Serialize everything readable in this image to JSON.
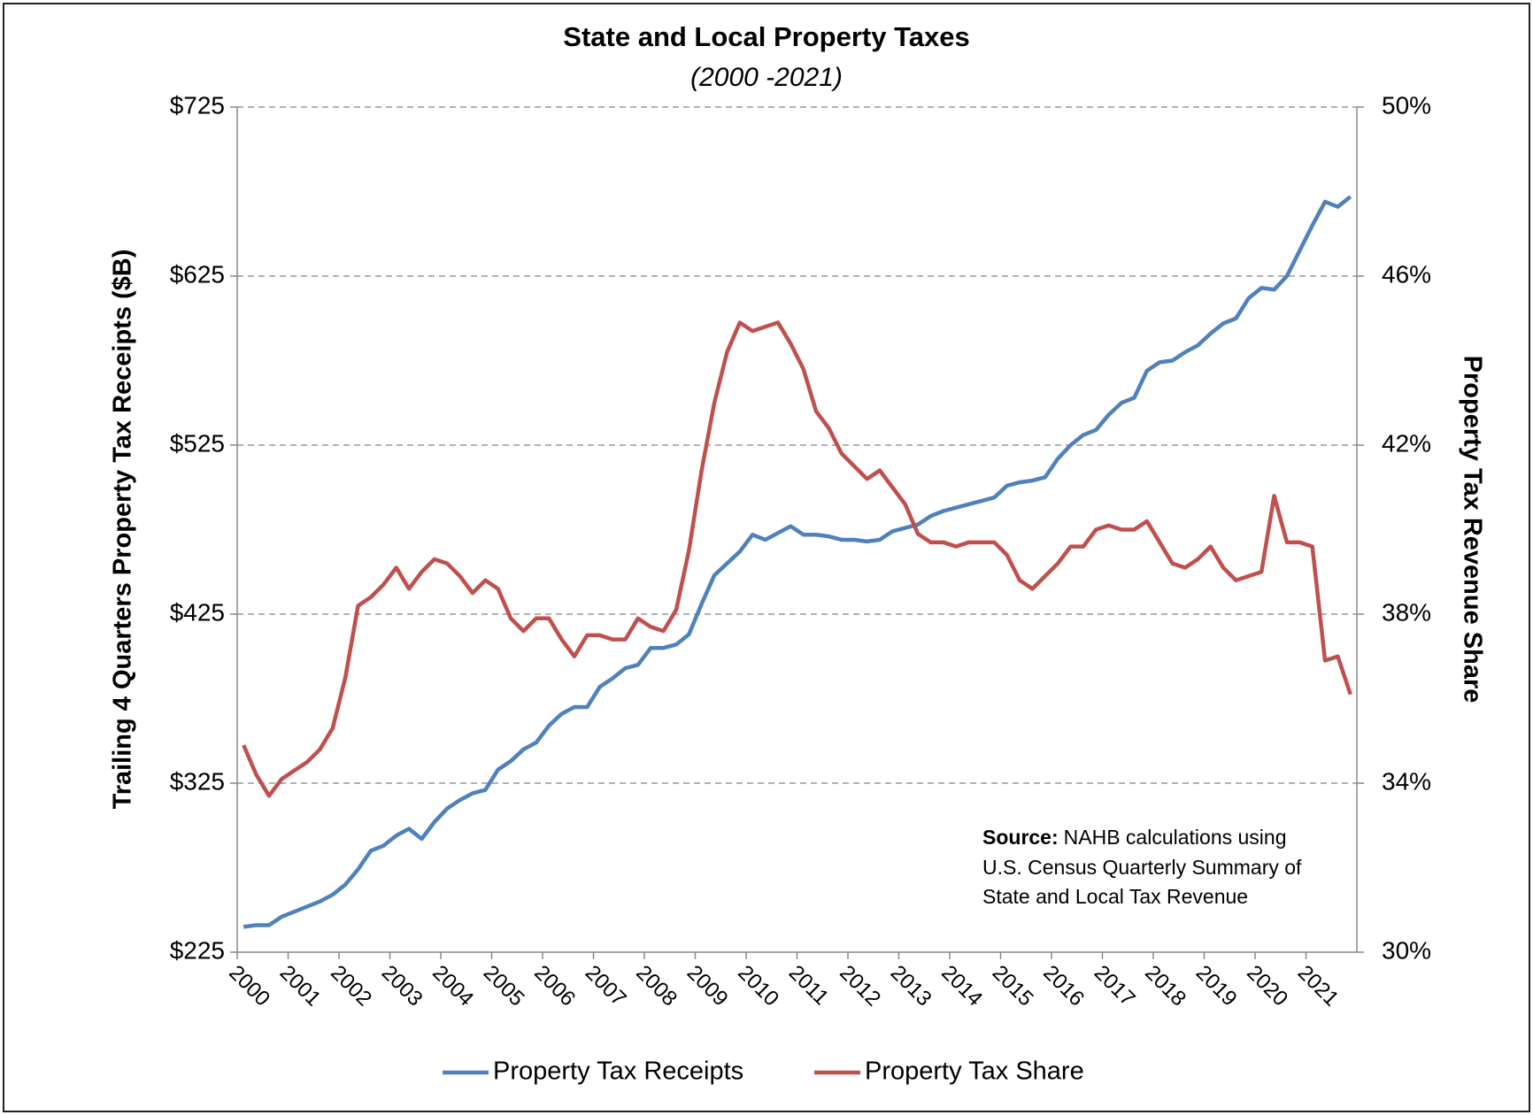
{
  "chart_data": {
    "type": "line",
    "title": "State and Local Property Taxes",
    "subtitle": "(2000 -2021)",
    "y_label": "Trailing 4 Quarters Property Tax Receipts ($B)",
    "y2_label": "Property Tax Revenue Share",
    "annotation": {
      "label": "Source:",
      "lines": [
        "NAHB calculations using",
        "U.S. Census Quarterly Summary of",
        "State and Local Tax Revenue"
      ]
    },
    "categories": [
      "2000",
      null,
      null,
      null,
      "2001",
      null,
      null,
      null,
      "2002",
      null,
      null,
      null,
      "2003",
      null,
      null,
      null,
      "2004",
      null,
      null,
      null,
      "2005",
      null,
      null,
      null,
      "2006",
      null,
      null,
      null,
      "2007",
      null,
      null,
      null,
      "2008",
      null,
      null,
      null,
      "2009",
      null,
      null,
      null,
      "2010",
      null,
      null,
      null,
      "2011",
      null,
      null,
      null,
      "2012",
      null,
      null,
      null,
      "2013",
      null,
      null,
      null,
      "2014",
      null,
      null,
      null,
      "2015",
      null,
      null,
      null,
      "2016",
      null,
      null,
      null,
      "2017",
      null,
      null,
      null,
      "2018",
      null,
      null,
      null,
      "2019",
      null,
      null,
      null,
      "2020",
      null,
      null,
      null,
      "2021",
      null,
      null,
      null
    ],
    "series": [
      {
        "name": "Property Tax Receipts",
        "color": "#4f81bd",
        "axis": "y",
        "values": [
          240,
          241,
          241,
          246,
          249,
          252,
          255,
          259,
          265,
          274,
          285,
          288,
          294,
          298,
          292,
          302,
          310,
          315,
          319,
          321,
          333,
          338,
          345,
          349,
          359,
          366,
          370,
          370,
          382,
          387,
          393,
          395,
          405,
          405,
          407,
          413,
          431,
          448,
          455,
          462,
          472,
          469,
          473,
          477,
          472,
          472,
          471,
          469,
          469,
          468,
          469,
          474,
          476,
          478,
          483,
          486,
          488,
          490,
          492,
          494,
          501,
          503,
          504,
          506,
          517,
          525,
          531,
          534,
          543,
          550,
          553,
          569,
          574,
          575,
          580,
          584,
          591,
          597,
          600,
          612,
          618,
          617,
          625,
          640,
          655,
          669,
          666,
          672
        ]
      },
      {
        "name": "Property Tax Share",
        "color": "#c0504d",
        "axis": "y2",
        "values": [
          34.9,
          34.2,
          33.7,
          34.1,
          34.3,
          34.5,
          34.8,
          35.3,
          36.5,
          38.2,
          38.4,
          38.7,
          39.1,
          38.6,
          39.0,
          39.3,
          39.2,
          38.9,
          38.5,
          38.8,
          38.6,
          37.9,
          37.6,
          37.9,
          37.9,
          37.4,
          37.0,
          37.5,
          37.5,
          37.4,
          37.4,
          37.9,
          37.7,
          37.6,
          38.1,
          39.5,
          41.4,
          43.0,
          44.2,
          44.9,
          44.7,
          44.8,
          44.9,
          44.4,
          43.8,
          42.8,
          42.4,
          41.8,
          41.5,
          41.2,
          41.4,
          41.0,
          40.6,
          39.9,
          39.7,
          39.7,
          39.6,
          39.7,
          39.7,
          39.7,
          39.4,
          38.8,
          38.6,
          38.9,
          39.2,
          39.6,
          39.6,
          40.0,
          40.1,
          40.0,
          40.0,
          40.2,
          39.7,
          39.2,
          39.1,
          39.3,
          39.6,
          39.1,
          38.8,
          38.9,
          39.0,
          40.8,
          39.7,
          39.7,
          39.6,
          36.9,
          37.0,
          36.1
        ]
      }
    ],
    "ylim": [
      225,
      725
    ],
    "yticks": [
      {
        "value": 225,
        "label": "$225"
      },
      {
        "value": 325,
        "label": "$325"
      },
      {
        "value": 425,
        "label": "$425"
      },
      {
        "value": 525,
        "label": "$525"
      },
      {
        "value": 625,
        "label": "$625"
      },
      {
        "value": 725,
        "label": "$725"
      }
    ],
    "y2lim": [
      30,
      50
    ],
    "y2ticks": [
      {
        "value": 30,
        "label": "30%"
      },
      {
        "value": 34,
        "label": "34%"
      },
      {
        "value": 38,
        "label": "38%"
      },
      {
        "value": 42,
        "label": "42%"
      },
      {
        "value": 46,
        "label": "46%"
      },
      {
        "value": 50,
        "label": "50%"
      }
    ],
    "grid": true,
    "legend": "bottom"
  }
}
